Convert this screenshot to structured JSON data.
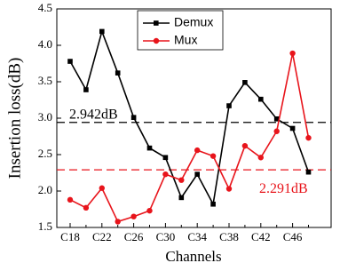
{
  "chart_data": {
    "type": "line",
    "x_label": "Channels",
    "y_label": "Insertion loss(dB)",
    "categories": [
      "C18",
      null,
      "C22",
      null,
      "C26",
      null,
      "C30",
      null,
      "C34",
      null,
      "C38",
      null,
      "C42",
      null,
      "C46",
      null
    ],
    "series": [
      {
        "name": "Demux",
        "color": "#000000",
        "marker": "square",
        "values": [
          3.78,
          3.39,
          4.19,
          3.62,
          3.01,
          2.59,
          2.46,
          1.91,
          2.23,
          1.82,
          3.17,
          3.49,
          3.26,
          2.99,
          2.86,
          2.26
        ]
      },
      {
        "name": "Mux",
        "color": "#e8141b",
        "marker": "circle",
        "values": [
          1.88,
          1.77,
          2.04,
          1.58,
          1.65,
          1.73,
          2.23,
          2.15,
          2.56,
          2.48,
          2.03,
          2.62,
          2.46,
          2.82,
          3.89,
          2.73
        ]
      }
    ],
    "reference_lines": [
      {
        "value": 2.942,
        "label": "2.942dB",
        "color": "#000000"
      },
      {
        "value": 2.291,
        "label": "2.291dB",
        "color": "#e8141b"
      }
    ],
    "ylim": [
      1.5,
      4.5
    ],
    "yticks": [
      1.5,
      {
        "value": 2,
        "label": "2.0"
      },
      2.5,
      {
        "value": 3,
        "label": "3.0"
      },
      3.5,
      {
        "value": 4,
        "label": "4.0"
      },
      4.5
    ],
    "legend": "top"
  }
}
